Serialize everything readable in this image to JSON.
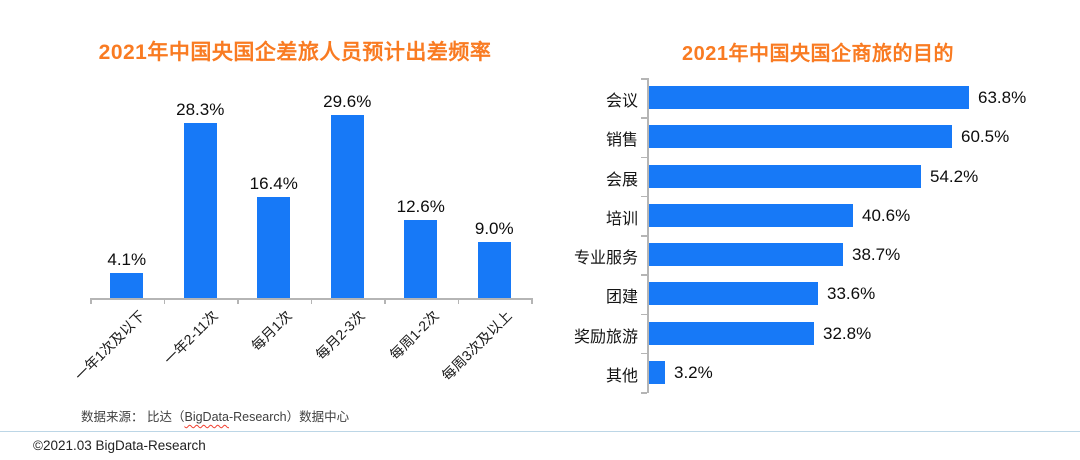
{
  "page": {
    "background": "#ffffff",
    "accent_orange": "#f97b22",
    "bar_blue": "#1779f7",
    "axis_gray": "#b5b5b5"
  },
  "chart_data": [
    {
      "type": "bar",
      "orientation": "vertical",
      "title": "2021年中国央国企差旅人员预计出差频率",
      "categories": [
        "一年1次及以下",
        "一年2-11次",
        "每月1次",
        "每月2-3次",
        "每周1-2次",
        "每周3次及以上"
      ],
      "values": [
        4.1,
        28.3,
        16.4,
        29.6,
        12.6,
        9.0
      ],
      "value_labels": [
        "4.1%",
        "28.3%",
        "16.4%",
        "29.6%",
        "12.6%",
        "9.0%"
      ],
      "unit": "%",
      "ylim": [
        0,
        32
      ],
      "grid": false,
      "data_labels": "above-bars",
      "bar_color": "#1779f7",
      "title_color": "#f97b22",
      "x_tick_label_rotation_deg": 45
    },
    {
      "type": "bar",
      "orientation": "horizontal",
      "title": "2021年中国央国企商旅的目的",
      "categories": [
        "会议",
        "销售",
        "会展",
        "培训",
        "专业服务",
        "团建",
        "奖励旅游",
        "其他"
      ],
      "values": [
        63.8,
        60.5,
        54.2,
        40.6,
        38.7,
        33.6,
        32.8,
        3.2
      ],
      "value_labels": [
        "63.8%",
        "60.5%",
        "54.2%",
        "40.6%",
        "38.7%",
        "33.6%",
        "32.8%",
        "3.2%"
      ],
      "unit": "%",
      "xlim": [
        0,
        70
      ],
      "grid": false,
      "data_labels": "right-of-bars",
      "bar_color": "#1779f7",
      "title_color": "#f97b22"
    }
  ],
  "footer": {
    "source_prefix": "数据来源： 比达（",
    "source_brand": "BigData",
    "source_suffix": "-Research）数据中心",
    "copyright": "©2021.03 BigData-Research"
  }
}
